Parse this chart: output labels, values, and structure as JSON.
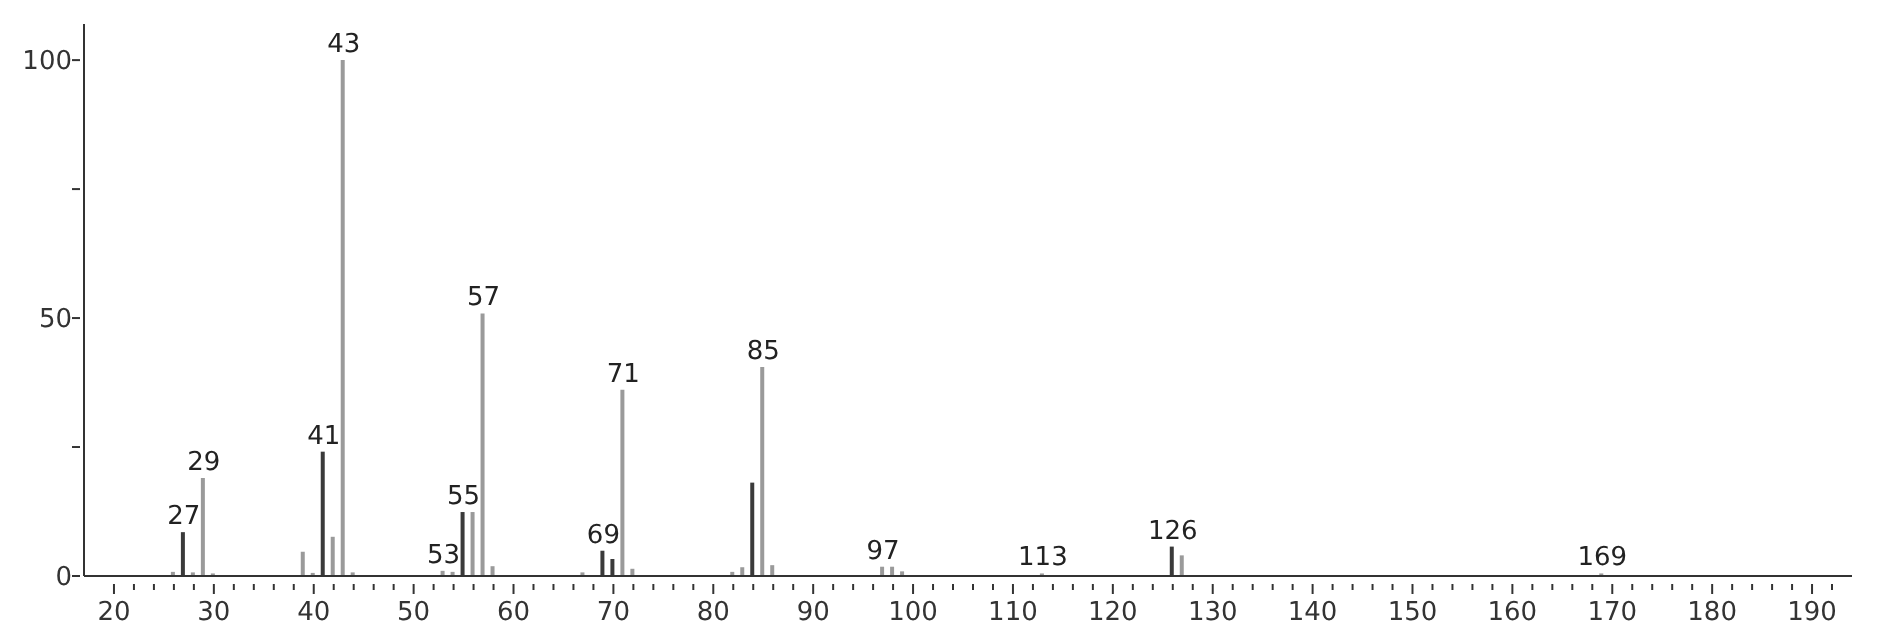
{
  "chart_data": {
    "type": "bar",
    "x": [
      26,
      27,
      28,
      29,
      30,
      39,
      40,
      41,
      42,
      43,
      44,
      53,
      54,
      55,
      56,
      57,
      58,
      67,
      69,
      70,
      71,
      72,
      82,
      83,
      84,
      85,
      86,
      97,
      98,
      99,
      113,
      126,
      127,
      169
    ],
    "values": [
      0.8,
      8.5,
      0.7,
      19,
      0.5,
      4.7,
      0.6,
      24.1,
      7.6,
      100,
      0.7,
      1.0,
      0.8,
      12.4,
      12.4,
      50.9,
      1.9,
      0.7,
      4.9,
      3.3,
      36.1,
      1.4,
      0.8,
      1.7,
      18.1,
      40.5,
      2.1,
      1.8,
      1.8,
      0.9,
      0.5,
      5.7,
      4.0,
      0.5
    ],
    "colors": [
      "#9a9a9a",
      "#3a3a3a",
      "#9a9a9a",
      "#9a9a9a",
      "#9a9a9a",
      "#9a9a9a",
      "#9a9a9a",
      "#3a3a3a",
      "#9a9a9a",
      "#9a9a9a",
      "#9a9a9a",
      "#9a9a9a",
      "#9a9a9a",
      "#3a3a3a",
      "#9a9a9a",
      "#9a9a9a",
      "#9a9a9a",
      "#9a9a9a",
      "#3a3a3a",
      "#3a3a3a",
      "#9a9a9a",
      "#9a9a9a",
      "#9a9a9a",
      "#9a9a9a",
      "#3a3a3a",
      "#9a9a9a",
      "#9a9a9a",
      "#9a9a9a",
      "#9a9a9a",
      "#9a9a9a",
      "#9a9a9a",
      "#3a3a3a",
      "#9a9a9a",
      "#9a9a9a"
    ],
    "xlim": [
      17,
      194
    ],
    "xticks": [
      20,
      {
        "value": 22,
        "label": null
      },
      {
        "value": 24,
        "label": null
      },
      {
        "value": 26,
        "label": null
      },
      {
        "value": 28,
        "label": null
      },
      30,
      {
        "value": 32,
        "label": null
      },
      {
        "value": 34,
        "label": null
      },
      {
        "value": 36,
        "label": null
      },
      {
        "value": 38,
        "label": null
      },
      40,
      {
        "value": 42,
        "label": null
      },
      {
        "value": 44,
        "label": null
      },
      {
        "value": 46,
        "label": null
      },
      {
        "value": 48,
        "label": null
      },
      50,
      {
        "value": 52,
        "label": null
      },
      {
        "value": 54,
        "label": null
      },
      {
        "value": 56,
        "label": null
      },
      {
        "value": 58,
        "label": null
      },
      60,
      {
        "value": 62,
        "label": null
      },
      {
        "value": 64,
        "label": null
      },
      {
        "value": 66,
        "label": null
      },
      {
        "value": 68,
        "label": null
      },
      70,
      {
        "value": 72,
        "label": null
      },
      {
        "value": 74,
        "label": null
      },
      {
        "value": 76,
        "label": null
      },
      {
        "value": 78,
        "label": null
      },
      80,
      {
        "value": 82,
        "label": null
      },
      {
        "value": 84,
        "label": null
      },
      {
        "value": 86,
        "label": null
      },
      {
        "value": 88,
        "label": null
      },
      90,
      {
        "value": 92,
        "label": null
      },
      {
        "value": 94,
        "label": null
      },
      {
        "value": 96,
        "label": null
      },
      {
        "value": 98,
        "label": null
      },
      100,
      {
        "value": 102,
        "label": null
      },
      {
        "value": 104,
        "label": null
      },
      {
        "value": 106,
        "label": null
      },
      {
        "value": 108,
        "label": null
      },
      110,
      {
        "value": 112,
        "label": null
      },
      {
        "value": 114,
        "label": null
      },
      {
        "value": 116,
        "label": null
      },
      {
        "value": 118,
        "label": null
      },
      120,
      {
        "value": 122,
        "label": null
      },
      {
        "value": 124,
        "label": null
      },
      {
        "value": 126,
        "label": null
      },
      {
        "value": 128,
        "label": null
      },
      130,
      {
        "value": 132,
        "label": null
      },
      {
        "value": 134,
        "label": null
      },
      {
        "value": 136,
        "label": null
      },
      {
        "value": 138,
        "label": null
      },
      140,
      {
        "value": 142,
        "label": null
      },
      {
        "value": 144,
        "label": null
      },
      {
        "value": 146,
        "label": null
      },
      {
        "value": 148,
        "label": null
      },
      150,
      {
        "value": 152,
        "label": null
      },
      {
        "value": 154,
        "label": null
      },
      {
        "value": 156,
        "label": null
      },
      {
        "value": 158,
        "label": null
      },
      160,
      {
        "value": 162,
        "label": null
      },
      {
        "value": 164,
        "label": null
      },
      {
        "value": 166,
        "label": null
      },
      {
        "value": 168,
        "label": null
      },
      170,
      {
        "value": 172,
        "label": null
      },
      {
        "value": 174,
        "label": null
      },
      {
        "value": 176,
        "label": null
      },
      {
        "value": 178,
        "label": null
      },
      180,
      {
        "value": 182,
        "label": null
      },
      {
        "value": 184,
        "label": null
      },
      {
        "value": 186,
        "label": null
      },
      {
        "value": 188,
        "label": null
      },
      190,
      {
        "value": 192,
        "label": null
      }
    ],
    "ylim": [
      0,
      107
    ],
    "yticks": [
      0,
      {
        "value": 25,
        "label": null
      },
      50,
      {
        "value": 75,
        "label": null
      },
      100
    ],
    "annotations": [
      {
        "text": "27",
        "x": 27,
        "y": 8.5
      },
      {
        "text": "29",
        "x": 29,
        "y": 19
      },
      {
        "text": "41",
        "x": 41,
        "y": 24.1
      },
      {
        "text": "43",
        "x": 43,
        "y": 100
      },
      {
        "text": "53",
        "x": 53,
        "y": 1.0
      },
      {
        "text": "55",
        "x": 55,
        "y": 12.4
      },
      {
        "text": "57",
        "x": 57,
        "y": 50.9
      },
      {
        "text": "69",
        "x": 69,
        "y": 4.9
      },
      {
        "text": "71",
        "x": 71,
        "y": 36.1
      },
      {
        "text": "85",
        "x": 85,
        "y": 40.5
      },
      {
        "text": "97",
        "x": 97,
        "y": 1.8
      },
      {
        "text": "113",
        "x": 113,
        "y": 0.5
      },
      {
        "text": "126",
        "x": 126,
        "y": 5.7
      },
      {
        "text": "169",
        "x": 169,
        "y": 0.5
      }
    ],
    "grid": false,
    "legend": false
  }
}
